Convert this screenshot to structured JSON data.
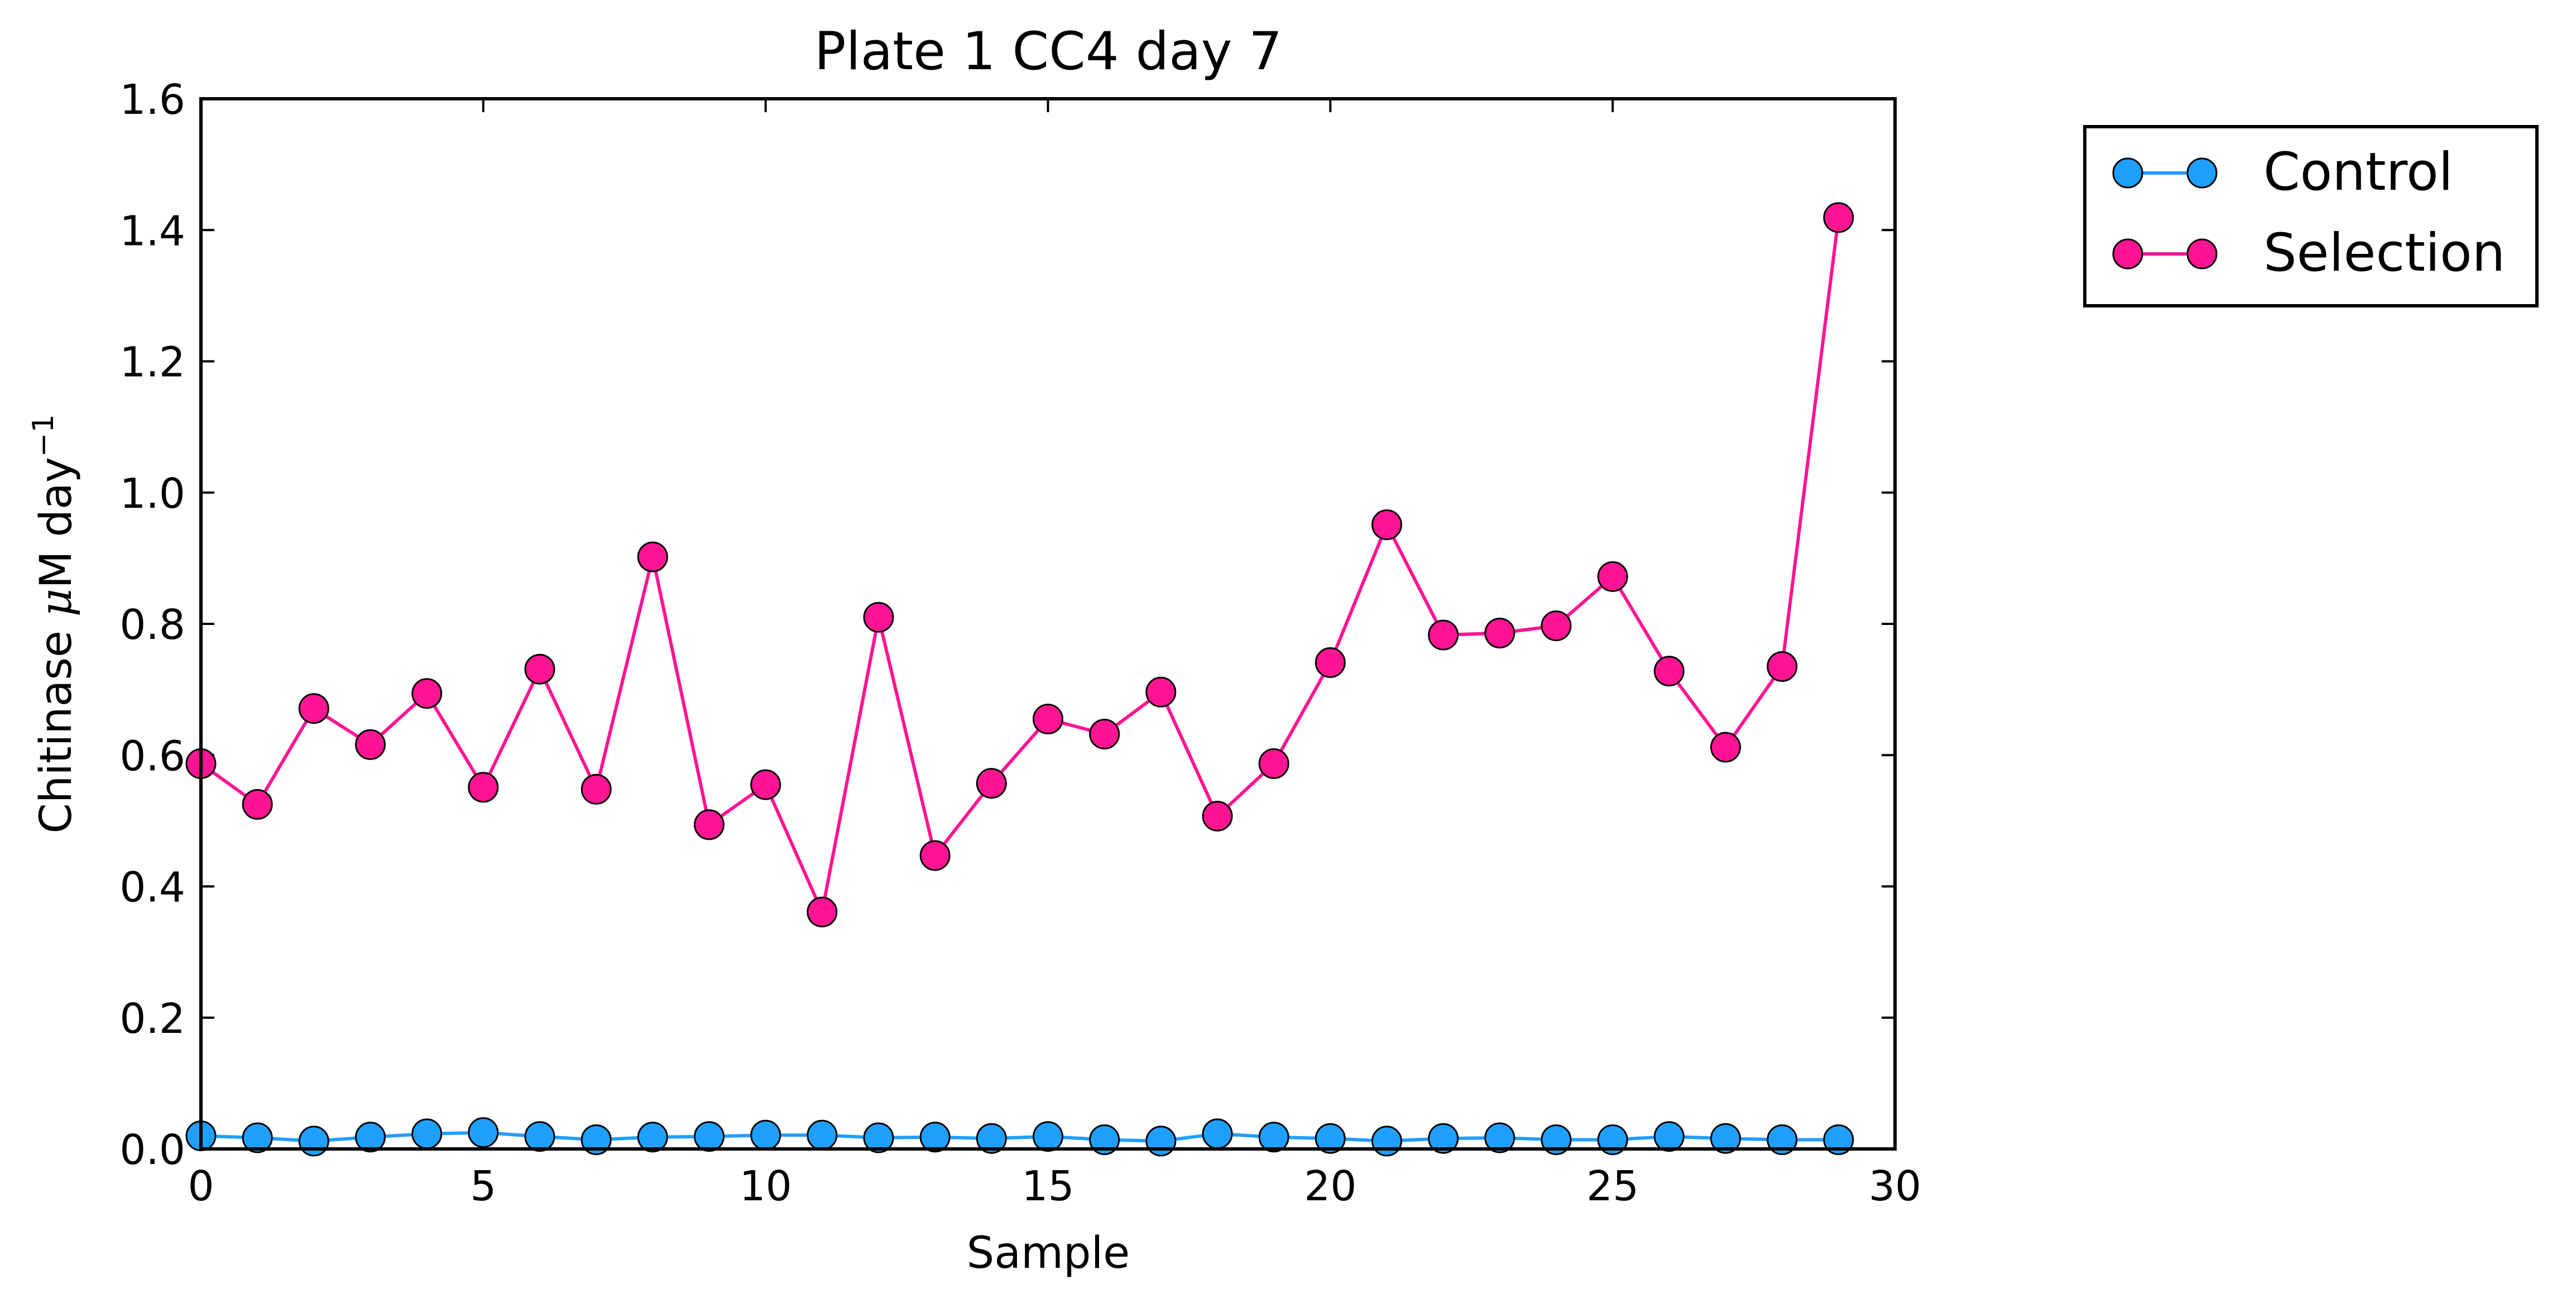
{
  "chart_data": {
    "type": "line",
    "title": "Plate 1 CC4 day 7",
    "xlabel": "Sample",
    "ylabel_main": "Chitinase ",
    "ylabel_mu": "μ",
    "ylabel_unit": "M day",
    "ylabel_exp": "−1",
    "xlim": [
      0,
      30
    ],
    "ylim": [
      0,
      1.6
    ],
    "xticks": [
      0,
      5,
      10,
      15,
      20,
      25,
      30
    ],
    "xtick_labels": [
      "0",
      "5",
      "10",
      "15",
      "20",
      "25",
      "30"
    ],
    "yticks": [
      0,
      0.2,
      0.4,
      0.6,
      0.8,
      1.0,
      1.2,
      1.4,
      1.6
    ],
    "ytick_labels": [
      "0.0",
      "0.2",
      "0.4",
      "0.6",
      "0.8",
      "1.0",
      "1.2",
      "1.4",
      "1.6"
    ],
    "grid": false,
    "legend_position": "outside-top-right",
    "x": [
      0,
      1,
      2,
      3,
      4,
      5,
      6,
      7,
      8,
      9,
      10,
      11,
      12,
      13,
      14,
      15,
      16,
      17,
      18,
      19,
      20,
      21,
      22,
      23,
      24,
      25,
      26,
      27,
      28,
      29
    ],
    "series": [
      {
        "name": "Control",
        "color": "#1f9fff",
        "marker_color": "#1f9fff",
        "values": [
          0.02,
          0.017,
          0.012,
          0.018,
          0.023,
          0.025,
          0.019,
          0.014,
          0.018,
          0.019,
          0.021,
          0.021,
          0.017,
          0.018,
          0.016,
          0.019,
          0.014,
          0.012,
          0.023,
          0.018,
          0.016,
          0.012,
          0.016,
          0.017,
          0.014,
          0.014,
          0.019,
          0.016,
          0.014,
          0.014
        ]
      },
      {
        "name": "Selection",
        "color": "#ff1493",
        "marker_color": "#ff1493",
        "values": [
          0.587,
          0.525,
          0.671,
          0.616,
          0.694,
          0.551,
          0.731,
          0.548,
          0.902,
          0.494,
          0.555,
          0.361,
          0.81,
          0.447,
          0.557,
          0.655,
          0.632,
          0.696,
          0.507,
          0.587,
          0.741,
          0.951,
          0.783,
          0.786,
          0.797,
          0.872,
          0.728,
          0.612,
          0.735,
          1.419
        ]
      }
    ]
  }
}
